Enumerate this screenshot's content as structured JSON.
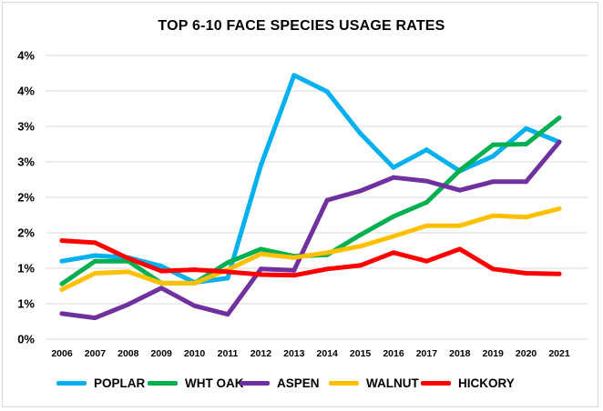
{
  "chart_data": {
    "type": "line",
    "title": "TOP 6-10 FACE SPECIES USAGE RATES",
    "xlabel": "",
    "ylabel": "",
    "x": [
      2006,
      2007,
      2008,
      2009,
      2010,
      2011,
      2012,
      2013,
      2014,
      2015,
      2016,
      2017,
      2018,
      2019,
      2020,
      2021
    ],
    "y_tick_labels": [
      "4%",
      "4%",
      "3%",
      "3%",
      "2%",
      "2%",
      "1%",
      "1%",
      "0%"
    ],
    "ylim": [
      0,
      4
    ],
    "grid": true,
    "legend": "bottom",
    "series": [
      {
        "name": "POPLAR",
        "color": "#00b0f0",
        "values": [
          1.1,
          1.18,
          1.15,
          1.03,
          0.8,
          0.86,
          2.45,
          3.72,
          3.49,
          2.9,
          2.42,
          2.67,
          2.37,
          2.58,
          2.97,
          2.78
        ]
      },
      {
        "name": "WHT OAK",
        "color": "#00b050",
        "values": [
          0.78,
          1.1,
          1.1,
          0.79,
          0.79,
          1.08,
          1.27,
          1.17,
          1.19,
          1.47,
          1.73,
          1.93,
          2.38,
          2.74,
          2.75,
          3.12
        ]
      },
      {
        "name": "ASPEN",
        "color": "#7030a0",
        "values": [
          0.36,
          0.3,
          0.49,
          0.72,
          0.47,
          0.35,
          0.99,
          0.97,
          1.96,
          2.09,
          2.28,
          2.23,
          2.1,
          2.22,
          2.22,
          2.78
        ]
      },
      {
        "name": "WALNUT",
        "color": "#ffc000",
        "values": [
          0.7,
          0.93,
          0.95,
          0.79,
          0.79,
          0.98,
          1.2,
          1.15,
          1.22,
          1.31,
          1.45,
          1.6,
          1.6,
          1.74,
          1.72,
          1.84
        ]
      },
      {
        "name": "HICKORY",
        "color": "#ff0000",
        "values": [
          1.39,
          1.36,
          1.14,
          0.96,
          0.98,
          0.95,
          0.91,
          0.9,
          0.99,
          1.04,
          1.22,
          1.1,
          1.27,
          0.99,
          0.93,
          0.92
        ]
      }
    ]
  }
}
